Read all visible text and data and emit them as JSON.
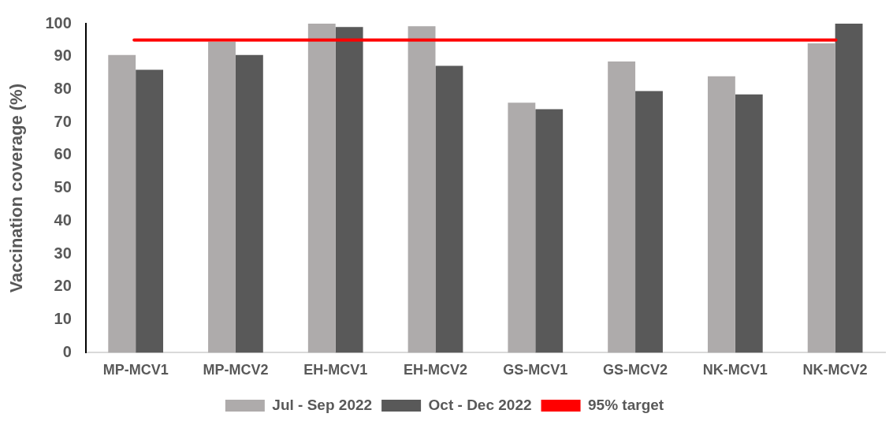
{
  "chart_data": {
    "type": "bar",
    "ylabel": "Vaccination coverage (%)",
    "categories": [
      "MP-MCV1",
      "MP-MCV2",
      "EH-MCV1",
      "EH-MCV2",
      "GS-MCV1",
      "GS-MCV2",
      "NK-MCV1",
      "NK-MCV2"
    ],
    "series": [
      {
        "name": "Jul - Sep 2022",
        "color": "#aeabab",
        "values": [
          90.5,
          94.5,
          100,
          99.2,
          76,
          88.5,
          84,
          94
        ]
      },
      {
        "name": "Oct - Dec 2022",
        "color": "#595959",
        "values": [
          86,
          90.5,
          99,
          87.2,
          74,
          79.5,
          78.5,
          100
        ]
      }
    ],
    "ylim": [
      0,
      100
    ],
    "yticks": [
      0,
      10,
      20,
      30,
      40,
      50,
      60,
      70,
      80,
      90,
      100
    ],
    "ref_lines": [
      {
        "axis": "y",
        "value": 95,
        "label": "95% target",
        "color": "#ff0000"
      }
    ],
    "grid": false,
    "legend": "bottom"
  }
}
